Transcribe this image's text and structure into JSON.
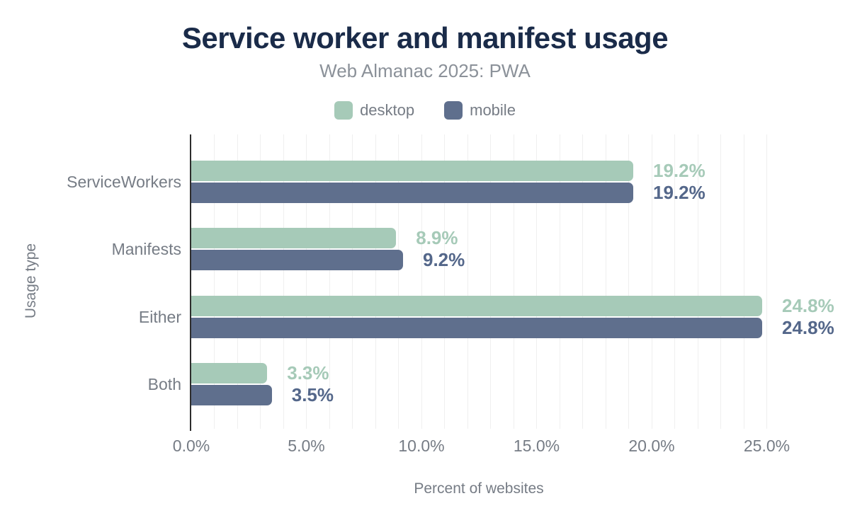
{
  "title": "Service worker and manifest usage",
  "subtitle": "Web Almanac 2025: PWA",
  "legend": {
    "items": [
      {
        "label": "desktop",
        "color": "#a6cab8"
      },
      {
        "label": "mobile",
        "color": "#5f6f8d"
      }
    ]
  },
  "axes": {
    "x_title": "Percent of websites",
    "y_title": "Usage type",
    "x_tick_labels": [
      "0.0%",
      "5.0%",
      "10.0%",
      "15.0%",
      "20.0%",
      "25.0%"
    ],
    "x_tick_values": [
      0,
      5,
      10,
      15,
      20,
      25
    ]
  },
  "chart_data": {
    "type": "bar",
    "orientation": "horizontal",
    "title": "Service worker and manifest usage",
    "subtitle": "Web Almanac 2025: PWA",
    "xlabel": "Percent of websites",
    "ylabel": "Usage type",
    "xlim": [
      0,
      25
    ],
    "gridline_step_pct": 1,
    "tick_step_pct": 5,
    "grid": true,
    "legend_position": "top",
    "categories": [
      "ServiceWorkers",
      "Manifests",
      "Either",
      "Both"
    ],
    "series": [
      {
        "name": "desktop",
        "color": "#a6cab8",
        "label_color": "#a6cab8",
        "values": [
          19.2,
          8.9,
          24.8,
          3.3
        ],
        "value_labels": [
          "19.2%",
          "8.9%",
          "24.8%",
          "3.3%"
        ]
      },
      {
        "name": "mobile",
        "color": "#5f6f8d",
        "label_color": "#54678a",
        "values": [
          19.2,
          9.2,
          24.8,
          3.5
        ],
        "value_labels": [
          "19.2%",
          "9.2%",
          "24.8%",
          "3.5%"
        ]
      }
    ]
  },
  "colors": {
    "title": "#1a2b49",
    "subtitle": "#8b9199",
    "axis_text": "#767c85",
    "axis_line": "#2d2d2d",
    "gridline": "#efefef",
    "background": "#ffffff"
  }
}
